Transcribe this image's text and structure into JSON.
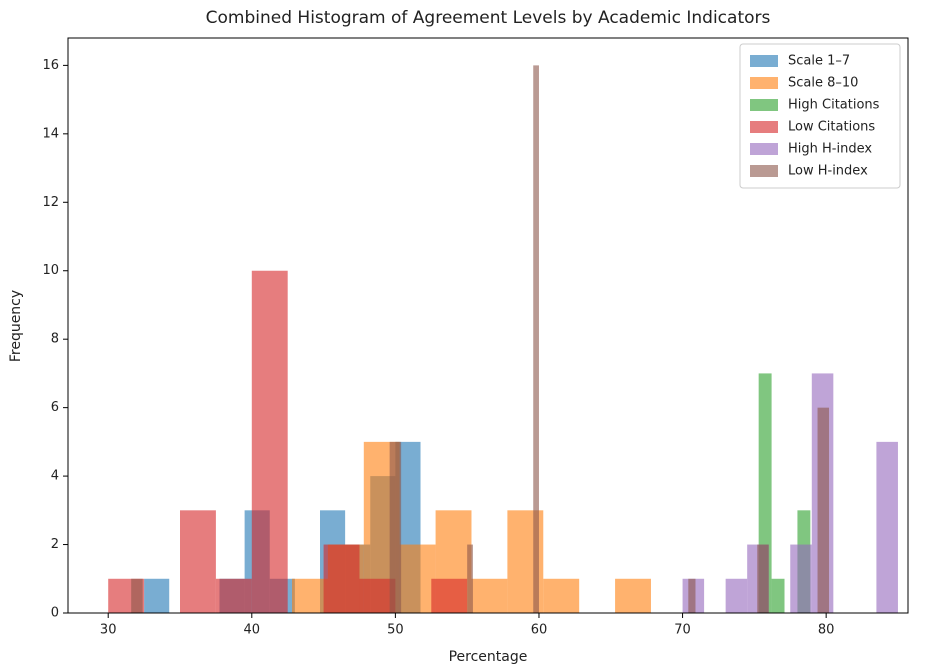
{
  "chart_data": {
    "type": "histogram",
    "title": "Combined Histogram of Agreement Levels by Academic Indicators",
    "x_label": "Percentage",
    "y_label": "Frequency",
    "xlim": [
      27.2,
      85.7
    ],
    "ylim": [
      0,
      16.8
    ],
    "xticks": [
      30,
      40,
      50,
      60,
      70,
      80
    ],
    "yticks": [
      0,
      2,
      4,
      6,
      8,
      10,
      12,
      14,
      16
    ],
    "legend": "upper right",
    "alpha": 0.6,
    "series": [
      {
        "name": "Scale 1–7",
        "color": "#1f77b4",
        "bins": [
          32.5,
          34.25,
          36,
          37.75,
          39.5,
          41.25,
          43,
          44.75,
          46.5,
          48.25,
          50,
          51.75
        ],
        "counts": [
          1,
          0,
          0,
          1,
          3,
          1,
          0,
          3,
          2,
          4,
          5
        ]
      },
      {
        "name": "Scale 8–10",
        "color": "#ff7f0e",
        "bins": [
          42.8,
          45.3,
          47.8,
          50.3,
          52.8,
          55.3,
          57.8,
          60.3,
          62.8,
          65.3,
          67.8
        ],
        "counts": [
          1,
          2,
          5,
          2,
          3,
          1,
          3,
          1,
          0,
          1
        ]
      },
      {
        "name": "High Citations",
        "color": "#2ca02c",
        "bins": [
          75.3,
          76.2,
          77.1,
          78.0,
          78.9
        ],
        "counts": [
          7,
          1,
          0,
          3
        ]
      },
      {
        "name": "Low Citations",
        "color": "#d62728",
        "bins": [
          30,
          32.5,
          35,
          37.5,
          40,
          42.5,
          45,
          47.5,
          50,
          52.5,
          55
        ],
        "counts": [
          1,
          0,
          3,
          1,
          10,
          0,
          2,
          1,
          0,
          1
        ]
      },
      {
        "name": "High H-index",
        "color": "#9467bd",
        "bins": [
          70,
          71.5,
          73,
          74.5,
          76,
          77.5,
          79,
          80.5,
          82,
          83.5,
          85
        ],
        "counts": [
          1,
          0,
          1,
          2,
          0,
          2,
          7,
          0,
          0,
          5
        ]
      },
      {
        "name": "Low H-index",
        "color": "#8c564b",
        "bins": [
          31.6,
          32.4,
          49.6,
          50.4,
          55.0,
          55.4,
          59.6,
          60.0,
          70.4,
          70.9,
          75.2,
          76.0,
          79.4,
          80.2
        ],
        "counts": [
          1,
          0,
          5,
          0,
          2,
          0,
          16,
          0,
          1,
          0,
          2,
          0,
          6
        ]
      }
    ]
  }
}
